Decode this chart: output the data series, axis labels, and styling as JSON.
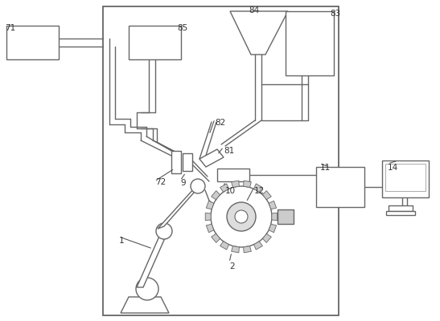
{
  "bg": "#ffffff",
  "lc": "#666666",
  "lw": 1.0,
  "fig_w": 5.47,
  "fig_h": 4.0,
  "dpi": 100
}
